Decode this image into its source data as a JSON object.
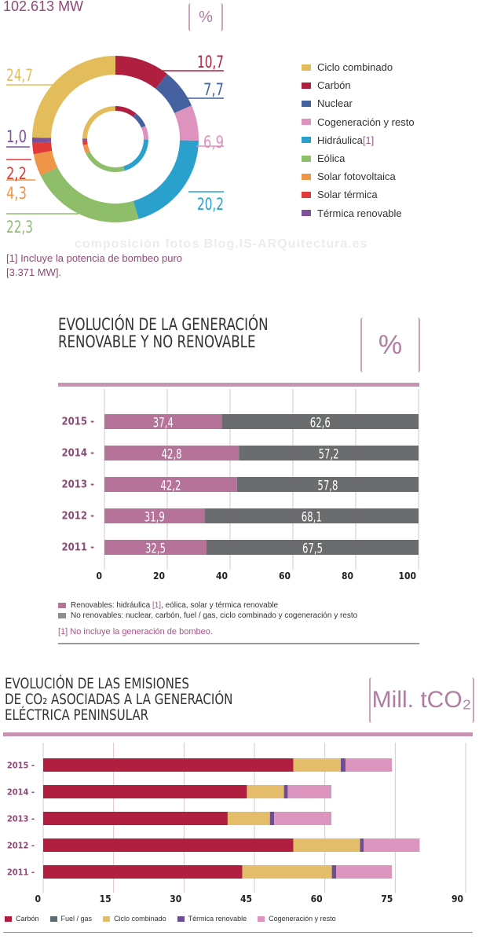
{
  "chart_data": [
    {
      "type": "pie",
      "title": "102.613 MW",
      "unit": "%",
      "categories": [
        "Carbón",
        "Nuclear",
        "Cogeneración y resto",
        "Hidráulica [1]",
        "Eólica",
        "Solar fotovoltaica",
        "Solar térmica",
        "Térmica renovable",
        "Ciclo combinado"
      ],
      "values": [
        10.7,
        7.7,
        6.9,
        20.2,
        22.3,
        4.3,
        2.2,
        1.0,
        24.7
      ],
      "labels": [
        "10,7",
        "7,7",
        "6,9",
        "20,2",
        "22,3",
        "4,3",
        "2,2",
        "1,0",
        "24,7"
      ],
      "colors": [
        "#b01f3f",
        "#46619f",
        "#de92be",
        "#2aa0cc",
        "#8fbe6b",
        "#ee9547",
        "#e03a3a",
        "#7a519a",
        "#e3bd5c"
      ],
      "legend": [
        {
          "label": "Ciclo combinado",
          "color": "#e3bd5c"
        },
        {
          "label": "Carbón",
          "color": "#b01f3f"
        },
        {
          "label": "Nuclear",
          "color": "#46619f"
        },
        {
          "label": "Cogeneración y resto",
          "color": "#de92be"
        },
        {
          "label": "Hidráulica",
          "note": "[1]",
          "color": "#2aa0cc"
        },
        {
          "label": "Eólica",
          "color": "#8fbe6b"
        },
        {
          "label": "Solar fotovoltaica",
          "color": "#ee9547"
        },
        {
          "label": "Solar térmica",
          "color": "#e03a3a"
        },
        {
          "label": "Térmica renovable",
          "color": "#7a519a"
        }
      ],
      "legend_position": "right",
      "footnote": "[1] Incluye la potencia de bombeo puro [3.371 MW]."
    },
    {
      "type": "bar",
      "orientation": "horizontal",
      "stacked": true,
      "title": "EVOLUCIÓN DE LA GENERACIÓN RENOVABLE Y NO RENOVABLE",
      "unit": "%",
      "categories": [
        "2015",
        "2014",
        "2013",
        "2012",
        "2011"
      ],
      "series": [
        {
          "name": "Renovables",
          "color": "#b5739a",
          "values": [
            37.4,
            42.8,
            42.2,
            31.9,
            32.5
          ],
          "labels": [
            "37,4",
            "42,8",
            "42,2",
            "31,9",
            "32,5"
          ]
        },
        {
          "name": "No renovables",
          "color": "#6b6c6e",
          "values": [
            62.6,
            57.2,
            57.8,
            68.1,
            67.5
          ],
          "labels": [
            "62,6",
            "57,2",
            "57,8",
            "68,1",
            "67,5"
          ]
        }
      ],
      "xlim": [
        0,
        100
      ],
      "xticks": [
        "0",
        "20",
        "40",
        "60",
        "80",
        "100"
      ],
      "grid": true,
      "legend": [
        {
          "label": "Renovables: hidráulica ",
          "note": "[1]",
          "rest": ", eólica, solar y térmica renovable",
          "color": "#b5739a"
        },
        {
          "label": "No renovables: nuclear, carbón, fuel / gas, ciclo combinado y cogeneración y resto",
          "color": "#8f8f8f"
        }
      ],
      "legend_position": "bottom",
      "footnote": "[1] No incluye la generación de bombeo."
    },
    {
      "type": "bar",
      "orientation": "horizontal",
      "stacked": true,
      "title_lines": [
        "EVOLUCIÓN DE LAS EMISIONES",
        "DE CO₂ ASOCIADAS A LA GENERACIÓN",
        "ELÉCTRICA PENINSULAR"
      ],
      "unit": "Mill. tCO₂",
      "categories": [
        "2015",
        "2014",
        "2013",
        "2012",
        "2011"
      ],
      "series": [
        {
          "name": "Carbón",
          "color": "#b01f3f",
          "values": [
            53.3,
            43.4,
            39.3,
            53.3,
            42.4
          ]
        },
        {
          "name": "Fuel / gas",
          "color": "#5f6b73",
          "values": [
            0,
            0,
            0,
            0,
            0
          ]
        },
        {
          "name": "Ciclo combinado",
          "color": "#e3bd6a",
          "values": [
            10.1,
            7.9,
            9.0,
            14.2,
            19.1
          ]
        },
        {
          "name": "Térmica renovable",
          "color": "#6e4d93",
          "values": [
            1.0,
            0.8,
            0.9,
            0.8,
            0.9
          ]
        },
        {
          "name": "Cogeneración y resto",
          "color": "#dc95bf",
          "values": [
            9.9,
            9.3,
            12.2,
            11.9,
            11.9
          ]
        }
      ],
      "xlim": [
        0,
        90
      ],
      "xticks": [
        "0",
        "15",
        "30",
        "45",
        "60",
        "75",
        "90"
      ],
      "grid": true,
      "legend_position": "bottom"
    }
  ],
  "watermark": "composición fotos   Blog.IS-ARQuitectura.es"
}
